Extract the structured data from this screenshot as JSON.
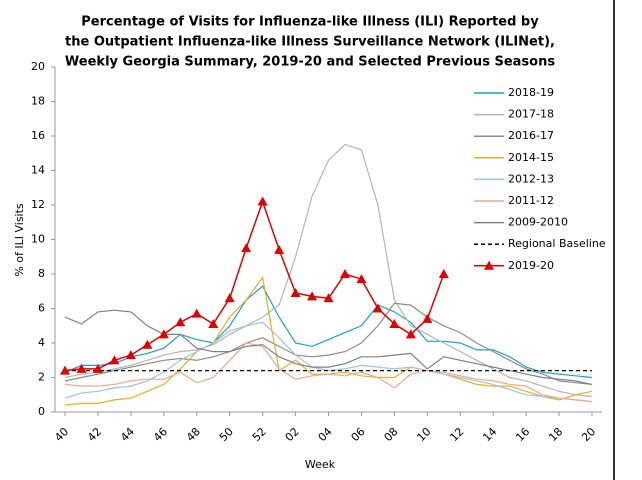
{
  "chart_data": {
    "type": "line",
    "title": [
      "Percentage of Visits for Influenza-like Illness (ILI) Reported by",
      "the Outpatient Influenza-like Illness Surveillance Network (ILINet),",
      "Weekly Georgia Summary, 2019-20 and Selected Previous Seasons"
    ],
    "x_label": "Week",
    "y_label": "% of ILI Visits",
    "categories": [
      "40",
      null,
      "42",
      null,
      "44",
      null,
      "46",
      null,
      "48",
      null,
      "50",
      null,
      "52",
      null,
      "02",
      null,
      "04",
      null,
      "06",
      null,
      "08",
      null,
      "10",
      null,
      "12",
      null,
      "14",
      null,
      "16",
      null,
      "18",
      null,
      "20"
    ],
    "ylim": [
      0,
      20
    ],
    "yticks": [
      0,
      2,
      4,
      6,
      8,
      10,
      12,
      14,
      16,
      18,
      20
    ],
    "legend": "upper right",
    "series": [
      {
        "name": "2018-19",
        "color": "#1ba0c8",
        "values": [
          2.3,
          2.7,
          2.7,
          2.8,
          3.2,
          3.4,
          3.7,
          4.5,
          4.2,
          4.0,
          5.0,
          6.5,
          7.3,
          5.5,
          4.0,
          3.8,
          4.2,
          4.6,
          5.0,
          6.2,
          5.8,
          5.2,
          4.1,
          4.1,
          4.0,
          3.6,
          3.6,
          3.2,
          2.6,
          2.3,
          2.2,
          2.1,
          2.0
        ]
      },
      {
        "name": "2017-18",
        "color": "#b4b4b4",
        "values": [
          2.0,
          2.2,
          2.3,
          2.5,
          2.7,
          3.0,
          3.3,
          3.5,
          3.6,
          3.9,
          4.5,
          5.0,
          5.5,
          6.2,
          9.0,
          12.5,
          14.6,
          15.5,
          15.2,
          12.0,
          6.5,
          5.0,
          4.5,
          4.0,
          3.5,
          3.0,
          2.5,
          2.0,
          1.8,
          1.5,
          1.2,
          1.0,
          0.9
        ]
      },
      {
        "name": "2016-17",
        "color": "#8c8c8c",
        "values": [
          1.8,
          2.0,
          2.2,
          2.4,
          2.6,
          2.8,
          3.0,
          3.1,
          3.0,
          3.2,
          3.5,
          4.0,
          4.3,
          3.8,
          3.3,
          3.2,
          3.3,
          3.5,
          4.0,
          5.0,
          6.3,
          6.2,
          5.5,
          5.0,
          4.6,
          4.0,
          3.5,
          3.0,
          2.5,
          2.2,
          1.8,
          1.7,
          1.6
        ]
      },
      {
        "name": "2014-15",
        "color": "#e6b020",
        "values": [
          0.4,
          0.5,
          0.5,
          0.7,
          0.8,
          1.2,
          1.6,
          2.5,
          3.5,
          4.0,
          5.5,
          6.5,
          7.8,
          2.4,
          3.0,
          2.2,
          2.2,
          2.3,
          2.1,
          2.0,
          2.0,
          2.6,
          2.4,
          2.2,
          1.9,
          1.6,
          1.5,
          1.5,
          1.2,
          0.9,
          0.7,
          1.0,
          1.2
        ]
      },
      {
        "name": "2012-13",
        "color": "#9cc3e5",
        "values": [
          0.8,
          1.1,
          1.2,
          1.4,
          1.5,
          1.8,
          2.3,
          3.0,
          3.5,
          4.0,
          4.7,
          5.0,
          5.2,
          4.3,
          3.3,
          2.6,
          2.4,
          2.5,
          2.7,
          2.6,
          2.5,
          2.6,
          2.4,
          2.2,
          2.0,
          1.8,
          1.6,
          1.3,
          1.0,
          0.9,
          0.8,
          0.7,
          0.6
        ]
      },
      {
        "name": "2011-12",
        "color": "#f0a890",
        "values": [
          1.6,
          1.5,
          1.5,
          1.6,
          1.8,
          1.9,
          1.9,
          2.3,
          1.7,
          2.0,
          3.0,
          4.0,
          3.8,
          2.5,
          1.9,
          2.1,
          2.2,
          2.1,
          2.3,
          2.0,
          1.4,
          2.2,
          2.4,
          2.3,
          2.1,
          1.9,
          1.8,
          1.6,
          1.5,
          1.0,
          0.8,
          0.7,
          0.6
        ]
      },
      {
        "name": "2009-2010",
        "color": "#808080",
        "values": [
          5.5,
          5.1,
          5.8,
          5.9,
          5.8,
          5.0,
          4.5,
          4.5,
          3.7,
          3.5,
          3.5,
          3.8,
          3.9,
          3.2,
          2.8,
          2.6,
          2.6,
          2.8,
          3.2,
          3.2,
          3.3,
          3.4,
          2.5,
          3.2,
          3.0,
          2.8,
          2.6,
          2.4,
          2.2,
          2.0,
          1.9,
          1.8,
          1.6
        ]
      },
      {
        "name": "Regional Baseline",
        "color": "#000000",
        "dash": true,
        "values": [
          2.4,
          2.4,
          2.4,
          2.4,
          2.4,
          2.4,
          2.4,
          2.4,
          2.4,
          2.4,
          2.4,
          2.4,
          2.4,
          2.4,
          2.4,
          2.4,
          2.4,
          2.4,
          2.4,
          2.4,
          2.4,
          2.4,
          2.4,
          2.4,
          2.4,
          2.4,
          2.4,
          2.4,
          2.4,
          2.4,
          2.4,
          2.4,
          2.4
        ]
      },
      {
        "name": "2019-20",
        "color": "#e00000",
        "marker": "triangle",
        "values": [
          2.4,
          2.5,
          2.5,
          3.0,
          3.3,
          3.9,
          4.5,
          5.2,
          5.7,
          5.1,
          6.6,
          9.5,
          12.2,
          9.4,
          6.9,
          6.7,
          6.6,
          8.0,
          7.7,
          6.0,
          5.1,
          4.5,
          5.4,
          8.0,
          null,
          null,
          null,
          null,
          null,
          null,
          null,
          null,
          null
        ]
      }
    ]
  }
}
